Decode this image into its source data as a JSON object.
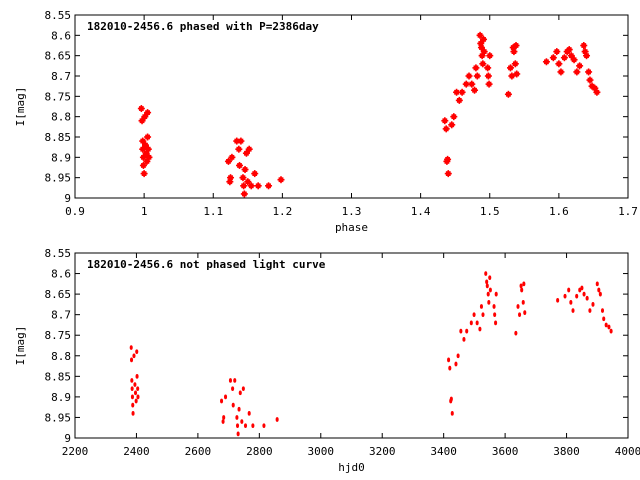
{
  "chart_data": [
    {
      "type": "scatter",
      "title": "182010-2456.6 phased with P=2386day",
      "xlabel": "phase",
      "ylabel": "I[mag]",
      "xlim": [
        0.9,
        1.7
      ],
      "ylim": [
        9.0,
        8.55
      ],
      "y_inverted": true,
      "x_ticks": [
        "0.9",
        "1",
        "1.1",
        "1.2",
        "1.3",
        "1.4",
        "1.5",
        "1.6",
        "1.7"
      ],
      "y_ticks": [
        "8.55",
        "8.6",
        "8.65",
        "8.7",
        "8.75",
        "8.8",
        "8.85",
        "8.9",
        "8.95",
        "9"
      ],
      "marker_color": "#ff0000",
      "grid": false,
      "points": [
        [
          0.996,
          8.78
        ],
        [
          0.997,
          8.81
        ],
        [
          0.998,
          8.86
        ],
        [
          0.998,
          8.88
        ],
        [
          0.999,
          8.9
        ],
        [
          0.999,
          8.92
        ],
        [
          1.0,
          8.94
        ],
        [
          1.001,
          8.8
        ],
        [
          1.002,
          8.87
        ],
        [
          1.003,
          8.89
        ],
        [
          1.004,
          8.91
        ],
        [
          1.005,
          8.79
        ],
        [
          1.005,
          8.85
        ],
        [
          1.006,
          8.88
        ],
        [
          1.007,
          8.9
        ],
        [
          1.122,
          8.91
        ],
        [
          1.124,
          8.96
        ],
        [
          1.125,
          8.95
        ],
        [
          1.127,
          8.9
        ],
        [
          1.134,
          8.86
        ],
        [
          1.137,
          8.88
        ],
        [
          1.138,
          8.92
        ],
        [
          1.14,
          8.86
        ],
        [
          1.143,
          8.95
        ],
        [
          1.144,
          8.97
        ],
        [
          1.145,
          8.99
        ],
        [
          1.146,
          8.93
        ],
        [
          1.148,
          8.89
        ],
        [
          1.15,
          8.96
        ],
        [
          1.152,
          8.88
        ],
        [
          1.155,
          8.97
        ],
        [
          1.16,
          8.94
        ],
        [
          1.165,
          8.97
        ],
        [
          1.18,
          8.97
        ],
        [
          1.198,
          8.955
        ],
        [
          1.435,
          8.81
        ],
        [
          1.437,
          8.83
        ],
        [
          1.438,
          8.91
        ],
        [
          1.439,
          8.905
        ],
        [
          1.44,
          8.94
        ],
        [
          1.445,
          8.82
        ],
        [
          1.448,
          8.8
        ],
        [
          1.452,
          8.74
        ],
        [
          1.456,
          8.76
        ],
        [
          1.46,
          8.74
        ],
        [
          1.466,
          8.72
        ],
        [
          1.47,
          8.7
        ],
        [
          1.474,
          8.72
        ],
        [
          1.478,
          8.735
        ],
        [
          1.48,
          8.68
        ],
        [
          1.482,
          8.7
        ],
        [
          1.486,
          8.6
        ],
        [
          1.487,
          8.62
        ],
        [
          1.488,
          8.63
        ],
        [
          1.489,
          8.65
        ],
        [
          1.49,
          8.67
        ],
        [
          1.491,
          8.61
        ],
        [
          1.492,
          8.64
        ],
        [
          1.497,
          8.68
        ],
        [
          1.498,
          8.7
        ],
        [
          1.499,
          8.72
        ],
        [
          1.5,
          8.65
        ],
        [
          1.527,
          8.745
        ],
        [
          1.53,
          8.68
        ],
        [
          1.532,
          8.7
        ],
        [
          1.534,
          8.63
        ],
        [
          1.535,
          8.64
        ],
        [
          1.537,
          8.67
        ],
        [
          1.539,
          8.695
        ],
        [
          1.538,
          8.625
        ],
        [
          1.582,
          8.665
        ],
        [
          1.592,
          8.655
        ],
        [
          1.597,
          8.64
        ],
        [
          1.6,
          8.67
        ],
        [
          1.603,
          8.69
        ],
        [
          1.608,
          8.655
        ],
        [
          1.612,
          8.64
        ],
        [
          1.615,
          8.635
        ],
        [
          1.618,
          8.65
        ],
        [
          1.622,
          8.66
        ],
        [
          1.626,
          8.69
        ],
        [
          1.63,
          8.675
        ],
        [
          1.636,
          8.625
        ],
        [
          1.638,
          8.64
        ],
        [
          1.64,
          8.65
        ],
        [
          1.643,
          8.69
        ],
        [
          1.645,
          8.71
        ],
        [
          1.648,
          8.725
        ],
        [
          1.652,
          8.73
        ],
        [
          1.655,
          8.74
        ]
      ]
    },
    {
      "type": "scatter",
      "title": "182010-2456.6 not phased light curve",
      "xlabel": "hjd0",
      "ylabel": "I[mag]",
      "xlim": [
        2200,
        4000
      ],
      "ylim": [
        9.0,
        8.55
      ],
      "y_inverted": true,
      "x_ticks": [
        "2200",
        "2400",
        "2600",
        "2800",
        "3000",
        "3200",
        "3400",
        "3600",
        "3800",
        "4000"
      ],
      "y_ticks": [
        "8.55",
        "8.6",
        "8.65",
        "8.7",
        "8.75",
        "8.8",
        "8.85",
        "8.9",
        "8.95",
        "9"
      ],
      "marker_color": "#ff0000",
      "grid": false,
      "points": [
        [
          2383,
          8.78
        ],
        [
          2384,
          8.81
        ],
        [
          2385,
          8.86
        ],
        [
          2386,
          8.88
        ],
        [
          2387,
          8.9
        ],
        [
          2388,
          8.92
        ],
        [
          2389,
          8.94
        ],
        [
          2392,
          8.8
        ],
        [
          2395,
          8.87
        ],
        [
          2397,
          8.89
        ],
        [
          2399,
          8.91
        ],
        [
          2401,
          8.79
        ],
        [
          2402,
          8.85
        ],
        [
          2404,
          8.88
        ],
        [
          2405,
          8.9
        ],
        [
          2677,
          8.91
        ],
        [
          2682,
          8.96
        ],
        [
          2684,
          8.95
        ],
        [
          2690,
          8.9
        ],
        [
          2706,
          8.86
        ],
        [
          2713,
          8.88
        ],
        [
          2715,
          8.92
        ],
        [
          2720,
          8.86
        ],
        [
          2727,
          8.95
        ],
        [
          2729,
          8.97
        ],
        [
          2731,
          8.99
        ],
        [
          2734,
          8.93
        ],
        [
          2738,
          8.89
        ],
        [
          2743,
          8.96
        ],
        [
          2748,
          8.88
        ],
        [
          2755,
          8.97
        ],
        [
          2767,
          8.94
        ],
        [
          2779,
          8.97
        ],
        [
          2815,
          8.97
        ],
        [
          2858,
          8.955
        ],
        [
          3416,
          8.81
        ],
        [
          3420,
          8.83
        ],
        [
          3423,
          8.91
        ],
        [
          3425,
          8.905
        ],
        [
          3428,
          8.94
        ],
        [
          3440,
          8.82
        ],
        [
          3447,
          8.8
        ],
        [
          3456,
          8.74
        ],
        [
          3466,
          8.76
        ],
        [
          3475,
          8.74
        ],
        [
          3490,
          8.72
        ],
        [
          3499,
          8.7
        ],
        [
          3509,
          8.72
        ],
        [
          3518,
          8.735
        ],
        [
          3523,
          8.68
        ],
        [
          3528,
          8.7
        ],
        [
          3537,
          8.6
        ],
        [
          3540,
          8.62
        ],
        [
          3542,
          8.63
        ],
        [
          3545,
          8.65
        ],
        [
          3547,
          8.67
        ],
        [
          3550,
          8.61
        ],
        [
          3552,
          8.64
        ],
        [
          3564,
          8.68
        ],
        [
          3566,
          8.7
        ],
        [
          3569,
          8.72
        ],
        [
          3571,
          8.65
        ],
        [
          3635,
          8.745
        ],
        [
          3642,
          8.68
        ],
        [
          3647,
          8.7
        ],
        [
          3652,
          8.63
        ],
        [
          3654,
          8.64
        ],
        [
          3659,
          8.67
        ],
        [
          3664,
          8.695
        ],
        [
          3661,
          8.625
        ],
        [
          3771,
          8.665
        ],
        [
          3795,
          8.655
        ],
        [
          3807,
          8.64
        ],
        [
          3814,
          8.67
        ],
        [
          3821,
          8.69
        ],
        [
          3833,
          8.655
        ],
        [
          3843,
          8.64
        ],
        [
          3850,
          8.635
        ],
        [
          3857,
          8.65
        ],
        [
          3867,
          8.66
        ],
        [
          3876,
          8.69
        ],
        [
          3886,
          8.675
        ],
        [
          3900,
          8.625
        ],
        [
          3905,
          8.64
        ],
        [
          3910,
          8.65
        ],
        [
          3917,
          8.69
        ],
        [
          3921,
          8.71
        ],
        [
          3929,
          8.725
        ],
        [
          3938,
          8.73
        ],
        [
          3945,
          8.74
        ]
      ]
    }
  ]
}
